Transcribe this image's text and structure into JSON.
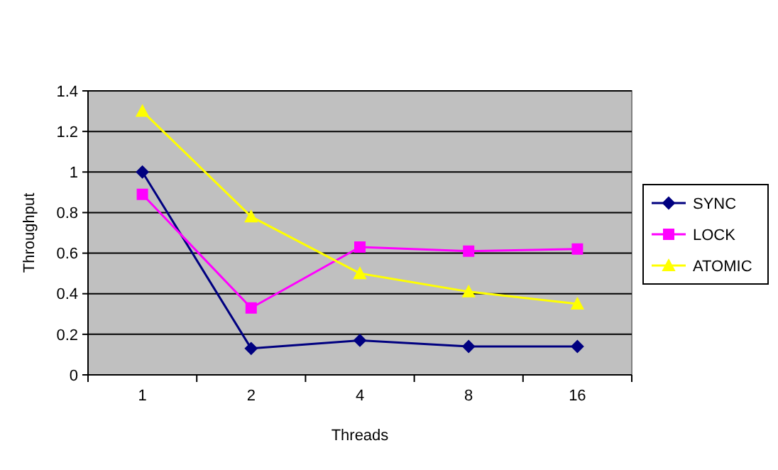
{
  "chart_data": {
    "type": "line",
    "xlabel": "Threads",
    "ylabel": "Throughput",
    "categories": [
      "1",
      "2",
      "4",
      "8",
      "16"
    ],
    "series": [
      {
        "name": "SYNC",
        "color": "#000080",
        "marker": "diamond",
        "values": [
          1.0,
          0.13,
          0.17,
          0.14,
          0.14
        ]
      },
      {
        "name": "LOCK",
        "color": "#ff00ff",
        "marker": "square",
        "values": [
          0.89,
          0.33,
          0.63,
          0.61,
          0.62
        ]
      },
      {
        "name": "ATOMIC",
        "color": "#ffff00",
        "marker": "triangle",
        "values": [
          1.3,
          0.78,
          0.5,
          0.41,
          0.35
        ]
      }
    ],
    "ylim": [
      0,
      1.4
    ],
    "yticks": [
      0,
      0.2,
      0.4,
      0.6,
      0.8,
      1,
      1.2,
      1.4
    ],
    "grid": "y",
    "legend": "right"
  }
}
